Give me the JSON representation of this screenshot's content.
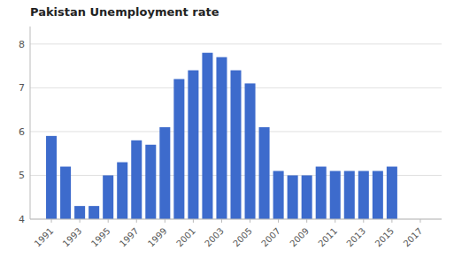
{
  "chart_data": {
    "type": "bar",
    "title": "Pakistan Unemployment rate",
    "x": [
      1991,
      1992,
      1993,
      1994,
      1995,
      1996,
      1997,
      1998,
      1999,
      2000,
      2001,
      2002,
      2003,
      2004,
      2005,
      2006,
      2007,
      2008,
      2009,
      2010,
      2011,
      2012,
      2013,
      2014,
      2015
    ],
    "values": [
      5.9,
      5.2,
      4.3,
      4.3,
      5.0,
      5.3,
      5.8,
      5.7,
      6.1,
      7.2,
      7.4,
      7.8,
      7.7,
      7.4,
      7.1,
      6.1,
      5.1,
      5.0,
      5.0,
      5.2,
      5.1,
      5.1,
      5.1,
      5.1,
      5.2
    ],
    "color": "#3d6bcc",
    "xlim": [
      1989.5,
      2018.5
    ],
    "xticks": [
      1991,
      1993,
      1995,
      1997,
      1999,
      2001,
      2003,
      2005,
      2007,
      2009,
      2011,
      2013,
      2015,
      2017
    ],
    "ylim": [
      4,
      8.4
    ],
    "yticks": [
      4,
      5,
      6,
      7,
      8
    ],
    "grid": true
  }
}
